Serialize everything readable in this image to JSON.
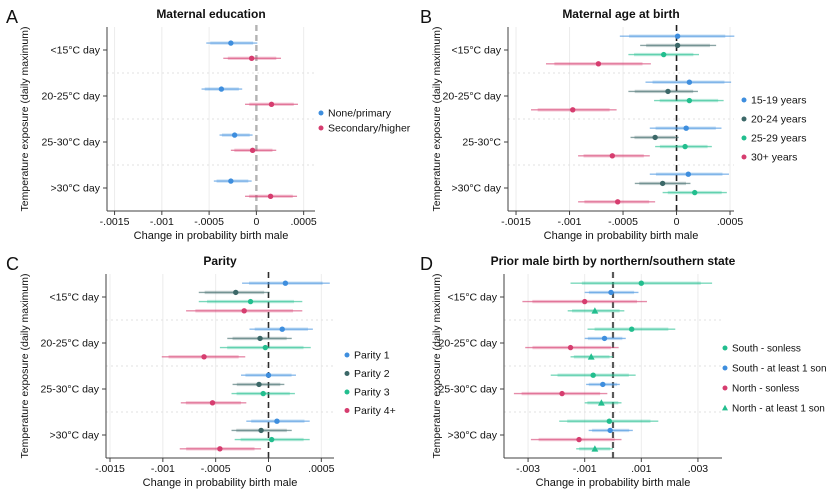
{
  "figure": {
    "xlabel": "Change in probability birth male",
    "ylabel": "Temperature exposure (daily maximum)"
  },
  "chart_data": [
    {
      "type": "scatter",
      "panel_letter": "A",
      "title": "Maternal education",
      "xlabel": "Change in probability birth male",
      "ylabel": "Temperature exposure (daily maximum)",
      "categories": [
        "<15°C day",
        "20-25°C day",
        "25-30°C day",
        ">30°C day"
      ],
      "xlim": [
        -0.00158,
        0.00062
      ],
      "xticks": [
        {
          "v": -0.0015,
          "label": "-.0015"
        },
        {
          "v": -0.001,
          "label": "-.001"
        },
        {
          "v": -0.0005,
          "label": "-.0005"
        },
        {
          "v": 0,
          "label": "0"
        },
        {
          "v": 0.0005,
          "label": ".0005"
        }
      ],
      "zero_line": {
        "x": 0,
        "color": "#b3b3b3",
        "width": 2.4
      },
      "legend_position": "right",
      "grid": true,
      "series": [
        {
          "name": "None/primary",
          "color": "#3E8EDE",
          "marker": "circle",
          "points": [
            {
              "est": -0.00027,
              "lo": -0.00053,
              "hi": 1e-05
            },
            {
              "est": -0.00037,
              "lo": -0.00058,
              "hi": -0.00015
            },
            {
              "est": -0.00023,
              "lo": -0.00039,
              "hi": -4e-05
            },
            {
              "est": -0.00027,
              "lo": -0.00045,
              "hi": -5e-05
            }
          ]
        },
        {
          "name": "Secondary/higher",
          "color": "#D63D6F",
          "marker": "circle",
          "points": [
            {
              "est": -5e-05,
              "lo": -0.00035,
              "hi": 0.00026
            },
            {
              "est": 0.00016,
              "lo": -0.00012,
              "hi": 0.00044
            },
            {
              "est": -4e-05,
              "lo": -0.00027,
              "hi": 0.00021
            },
            {
              "est": 0.00015,
              "lo": -0.00012,
              "hi": 0.00043
            }
          ]
        }
      ]
    },
    {
      "type": "scatter",
      "panel_letter": "B",
      "title": "Maternal age at birth",
      "xlabel": "Change in probability birth male",
      "ylabel": "Temperature exposure (daily maximum)",
      "categories": [
        "<15°C day",
        "20-25°C day",
        "25-30°C",
        ">30°C day"
      ],
      "xlim": [
        -0.001575,
        0.000537
      ],
      "xticks": [
        {
          "v": -0.0015,
          "label": "-.0015"
        },
        {
          "v": -0.001,
          "label": "-.001"
        },
        {
          "v": -0.0005,
          "label": "-.0005"
        },
        {
          "v": 0,
          "label": "0"
        },
        {
          "v": 0.0005,
          "label": ".0005"
        }
      ],
      "zero_line": {
        "x": 0,
        "color": "#1f1f1f",
        "width": 1.6
      },
      "legend_position": "right",
      "grid": true,
      "series": [
        {
          "name": "15-19 years",
          "color": "#3E8EDE",
          "marker": "circle",
          "points": [
            {
              "est": 1e-05,
              "lo": -0.00053,
              "hi": 0.00054
            },
            {
              "est": 0.00012,
              "lo": -0.00029,
              "hi": 0.00051
            },
            {
              "est": 9e-05,
              "lo": -0.00025,
              "hi": 0.00042
            },
            {
              "est": 0.00011,
              "lo": -0.00025,
              "hi": 0.00049
            }
          ]
        },
        {
          "name": "20-24 years",
          "color": "#3C6868",
          "marker": "circle",
          "points": [
            {
              "est": 1e-05,
              "lo": -0.00034,
              "hi": 0.00037
            },
            {
              "est": -8e-05,
              "lo": -0.00045,
              "hi": 0.0002
            },
            {
              "est": -0.0002,
              "lo": -0.00043,
              "hi": 2e-05
            },
            {
              "est": -0.00013,
              "lo": -0.00039,
              "hi": 0.00013
            }
          ]
        },
        {
          "name": "25-29 years",
          "color": "#22BE8E",
          "marker": "circle",
          "points": [
            {
              "est": -0.00012,
              "lo": -0.00045,
              "hi": 0.00021
            },
            {
              "est": 0.00012,
              "lo": -0.00021,
              "hi": 0.00044
            },
            {
              "est": 8e-05,
              "lo": -0.0002,
              "hi": 0.00033
            },
            {
              "est": 0.00017,
              "lo": -0.00013,
              "hi": 0.00047
            }
          ]
        },
        {
          "name": "30+ years",
          "color": "#D63D6F",
          "marker": "circle",
          "points": [
            {
              "est": -0.00073,
              "lo": -0.00122,
              "hi": -0.00024
            },
            {
              "est": -0.00097,
              "lo": -0.00136,
              "hi": -0.00056
            },
            {
              "est": -0.0006,
              "lo": -0.00092,
              "hi": -0.00025
            },
            {
              "est": -0.00055,
              "lo": -0.00092,
              "hi": -0.0002
            }
          ]
        }
      ]
    },
    {
      "type": "scatter",
      "panel_letter": "C",
      "title": "Parity",
      "xlabel": "Change in probability birth male",
      "ylabel": "Temperature exposure (daily maximum)",
      "categories": [
        "<15°C day",
        "20-25°C day",
        "25-30°C day",
        ">30°C day"
      ],
      "xlim": [
        -0.001538,
        0.00062
      ],
      "xticks": [
        {
          "v": -0.0015,
          "label": "-.0015"
        },
        {
          "v": -0.001,
          "label": "-.001"
        },
        {
          "v": -0.0005,
          "label": "-.0005"
        },
        {
          "v": 0,
          "label": "0"
        },
        {
          "v": 0.0005,
          "label": ".0005"
        }
      ],
      "zero_line": {
        "x": 0,
        "color": "#2e2e2e",
        "width": 1.6
      },
      "legend_position": "right",
      "grid": true,
      "series": [
        {
          "name": "Parity 1",
          "color": "#3E8EDE",
          "marker": "circle",
          "points": [
            {
              "est": 0.00016,
              "lo": -0.00025,
              "hi": 0.00058
            },
            {
              "est": 0.00013,
              "lo": -0.00018,
              "hi": 0.00042
            },
            {
              "est": 0.0,
              "lo": -0.00026,
              "hi": 0.00026
            },
            {
              "est": 8e-05,
              "lo": -0.00021,
              "hi": 0.00039
            }
          ]
        },
        {
          "name": "Parity 2",
          "color": "#3C6868",
          "marker": "circle",
          "points": [
            {
              "est": -0.00031,
              "lo": -0.00066,
              "hi": 1e-05
            },
            {
              "est": -8e-05,
              "lo": -0.00039,
              "hi": 0.00022
            },
            {
              "est": -9e-05,
              "lo": -0.00034,
              "hi": 0.00015
            },
            {
              "est": -7e-05,
              "lo": -0.00035,
              "hi": 0.00022
            }
          ]
        },
        {
          "name": "Parity 3",
          "color": "#22BE8E",
          "marker": "circle",
          "points": [
            {
              "est": -0.00017,
              "lo": -0.00066,
              "hi": 0.00032
            },
            {
              "est": -3e-05,
              "lo": -0.00046,
              "hi": 0.0004
            },
            {
              "est": -5e-05,
              "lo": -0.00035,
              "hi": 0.00025
            },
            {
              "est": 3e-05,
              "lo": -0.00032,
              "hi": 0.00039
            }
          ]
        },
        {
          "name": "Parity 4+",
          "color": "#D63D6F",
          "marker": "circle",
          "points": [
            {
              "est": -0.00023,
              "lo": -0.00078,
              "hi": 0.00032
            },
            {
              "est": -0.00061,
              "lo": -0.00101,
              "hi": -0.00022
            },
            {
              "est": -0.00053,
              "lo": -0.00083,
              "hi": -0.00021
            },
            {
              "est": -0.00046,
              "lo": -0.00084,
              "hi": -7e-05
            }
          ]
        }
      ]
    },
    {
      "type": "scatter",
      "panel_letter": "D",
      "title": "Prior male birth by northern/southern state",
      "xlabel": "Change in probability birth male",
      "ylabel": "Temperature exposure (daily maximum)",
      "categories": [
        "<15°C day",
        "20-25°C day",
        "25-30°C day",
        ">30°C day"
      ],
      "xlim": [
        -0.00385,
        0.00385
      ],
      "xticks": [
        {
          "v": -0.003,
          "label": "-.003"
        },
        {
          "v": -0.001,
          "label": "-.001"
        },
        {
          "v": 0.001,
          "label": ".001"
        },
        {
          "v": 0.003,
          "label": ".003"
        }
      ],
      "zero_line": {
        "x": 0,
        "color": "#5a5a5a",
        "width": 2.2
      },
      "legend_position": "right",
      "grid": true,
      "series": [
        {
          "name": "South - sonless",
          "color": "#22BE8E",
          "marker": "circle",
          "points": [
            {
              "est": 0.001,
              "lo": -0.0015,
              "hi": 0.0035
            },
            {
              "est": 0.00066,
              "lo": -0.0009,
              "hi": 0.0022
            },
            {
              "est": -0.0007,
              "lo": -0.0022,
              "hi": 0.0008
            },
            {
              "est": -0.00013,
              "lo": -0.0019,
              "hi": 0.0016
            }
          ]
        },
        {
          "name": "South - at least 1 son",
          "color": "#3E8EDE",
          "marker": "circle",
          "points": [
            {
              "est": -7e-05,
              "lo": -0.001,
              "hi": 0.0009
            },
            {
              "est": -0.0003,
              "lo": -0.001,
              "hi": 0.00045
            },
            {
              "est": -0.00036,
              "lo": -0.00095,
              "hi": 0.00024
            },
            {
              "est": -0.0001,
              "lo": -0.00086,
              "hi": 0.0007
            }
          ]
        },
        {
          "name": "North - sonless",
          "color": "#D63D6F",
          "marker": "circle",
          "points": [
            {
              "est": -0.001,
              "lo": -0.0032,
              "hi": 0.0012
            },
            {
              "est": -0.0015,
              "lo": -0.0031,
              "hi": 0.0002
            },
            {
              "est": -0.0018,
              "lo": -0.0035,
              "hi": -0.0002
            },
            {
              "est": -0.0012,
              "lo": -0.0029,
              "hi": 0.0003
            }
          ]
        },
        {
          "name": "North - at least 1 son",
          "color": "#22BE8E",
          "marker": "triangle",
          "points": [
            {
              "est": -0.00064,
              "lo": -0.0016,
              "hi": 0.0004
            },
            {
              "est": -0.00077,
              "lo": -0.0015,
              "hi": 0.0
            },
            {
              "est": -0.00041,
              "lo": -0.001,
              "hi": 0.0003
            },
            {
              "est": -0.00064,
              "lo": -0.0013,
              "hi": 0.0
            }
          ]
        }
      ]
    }
  ]
}
